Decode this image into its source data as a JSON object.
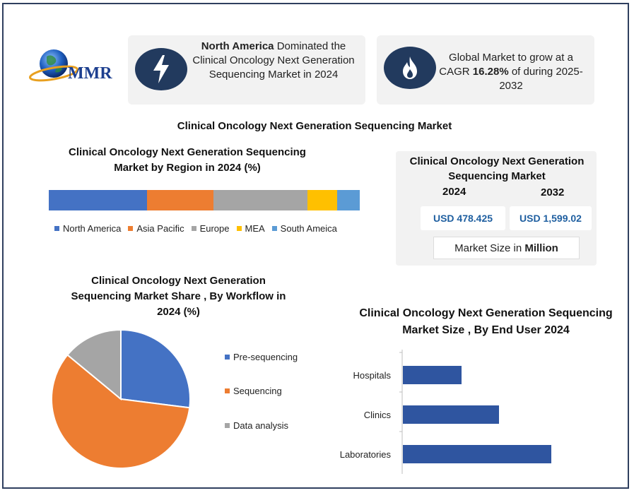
{
  "logo": {
    "text": "MMR"
  },
  "card_left": {
    "icon": "lightning-icon",
    "bold_text": "North America",
    "text": " Dominated the Clinical Oncology Next Generation Sequencing Market in 2024"
  },
  "card_right": {
    "icon": "flame-icon",
    "text_before": "Global Market to grow at a CAGR ",
    "bold_text": "16.28%",
    "text_after": " of during 2025-2032"
  },
  "main_title": "Clinical Oncology Next Generation Sequencing Market",
  "colors": {
    "navy": "#223a5e",
    "north_america": "#4472c4",
    "asia_pacific": "#ed7d31",
    "europe": "#a5a5a5",
    "mea": "#ffc000",
    "south_america": "#5b9bd5",
    "bar_blue": "#2f55a0"
  },
  "market_box": {
    "title": "Clinical Oncology Next Generation Sequencing Market",
    "year1": "2024",
    "year2": "2032",
    "value1": "USD 478.425",
    "value2": "USD 1,599.02",
    "size_label_prefix": "Market Size in ",
    "size_label_bold": "Million"
  },
  "chart_data": [
    {
      "type": "bar",
      "orientation": "stacked-horizontal",
      "title": "Clinical Oncology Next Generation Sequencing Market by Region in 2024 (%)",
      "categories": [
        "North America",
        "Asia Pacific",
        "Europe",
        "MEA",
        "South Ameica"
      ],
      "values": [
        31.6,
        21.4,
        30.2,
        9.5,
        7.3
      ],
      "legend": "bottom"
    },
    {
      "type": "pie",
      "title": "Clinical Oncology Next Generation Sequencing Market Share  , By Workflow in 2024 (%)",
      "categories": [
        "Pre-sequencing",
        "Sequencing",
        "Data analysis"
      ],
      "values": [
        27,
        59,
        14
      ],
      "legend": "right"
    },
    {
      "type": "bar",
      "orientation": "horizontal",
      "title": "Clinical Oncology Next Generation Sequencing Market Size , By End User 2024",
      "categories": [
        "Hospitals",
        "Clinics",
        "Laboratories"
      ],
      "values": [
        83,
        136,
        210
      ],
      "xlim": [
        0,
        230
      ]
    }
  ]
}
